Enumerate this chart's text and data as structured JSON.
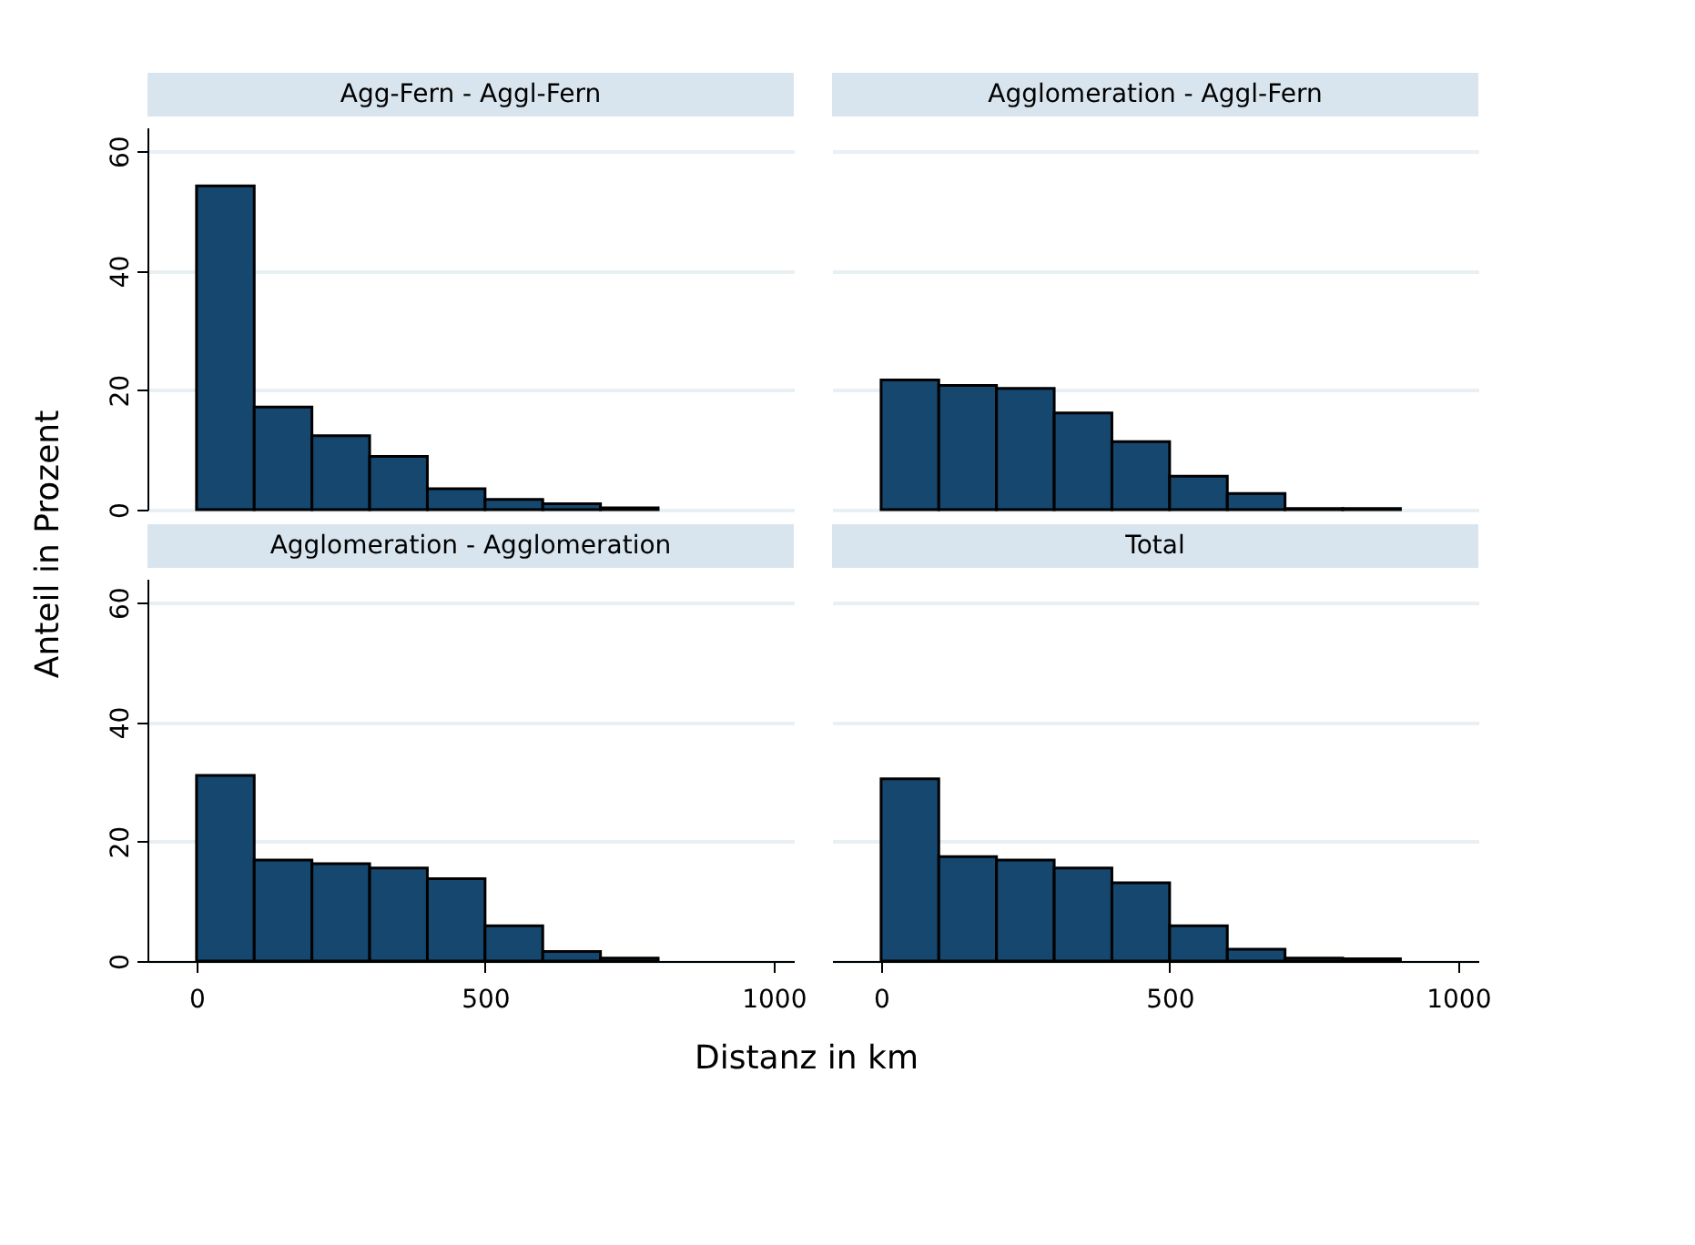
{
  "chart_data": [
    {
      "type": "histogram",
      "title": "Agg-Fern - Aggl-Fern",
      "ylabel": "Anteil in Prozent",
      "bins": [
        0,
        100,
        200,
        300,
        400,
        500,
        600,
        700,
        800
      ],
      "values": [
        54.2,
        17.2,
        12.4,
        8.9,
        3.5,
        1.7,
        1.0,
        0.3
      ],
      "color": "#15476f",
      "xlim": [
        -85,
        1035
      ],
      "xticks": [
        0,
        500,
        1000
      ],
      "ylim": [
        0,
        64
      ],
      "yticks": [
        0,
        20,
        40,
        60
      ],
      "grid": "y",
      "tick_labels": "y"
    },
    {
      "type": "histogram",
      "title": "Agglomeration - Aggl-Fern",
      "bins": [
        0,
        100,
        200,
        300,
        400,
        500,
        600,
        700,
        800,
        900
      ],
      "values": [
        21.7,
        20.8,
        20.3,
        16.2,
        11.4,
        5.6,
        2.7,
        0.2,
        0.2
      ],
      "color": "#15476f",
      "xlim": [
        -85,
        1035
      ],
      "xticks": [
        0,
        500,
        1000
      ],
      "yticks": [
        0,
        20,
        40,
        60
      ],
      "grid": "y",
      "tick_labels": false
    },
    {
      "type": "histogram",
      "title": "Agglomeration - Agglomeration",
      "xlabel": "Distanz in km",
      "bins": [
        0,
        100,
        200,
        300,
        400,
        500,
        600,
        700,
        800
      ],
      "values": [
        31.1,
        16.9,
        16.3,
        15.6,
        13.8,
        5.9,
        1.6,
        0.5
      ],
      "color": "#15476f",
      "xlim": [
        -85,
        1035
      ],
      "xticks": [
        0,
        500,
        {
          "value": 1000,
          "label": "1000"
        }
      ],
      "ylim": [
        0,
        64
      ],
      "yticks": [
        0,
        20,
        40,
        60
      ],
      "grid": "y"
    },
    {
      "type": "histogram",
      "title": "Total",
      "bins": [
        0,
        100,
        200,
        300,
        400,
        500,
        600,
        700,
        800,
        900
      ],
      "values": [
        30.5,
        17.5,
        16.9,
        15.6,
        13.1,
        5.9,
        2.0,
        0.5,
        0.4
      ],
      "color": "#15476f",
      "xlim": [
        -85,
        1035
      ],
      "xticks": [
        0,
        500,
        {
          "value": 1000,
          "label": "1000"
        }
      ],
      "yticks": [
        0,
        20,
        40,
        60
      ],
      "grid": "y",
      "tick_labels": "x"
    }
  ]
}
